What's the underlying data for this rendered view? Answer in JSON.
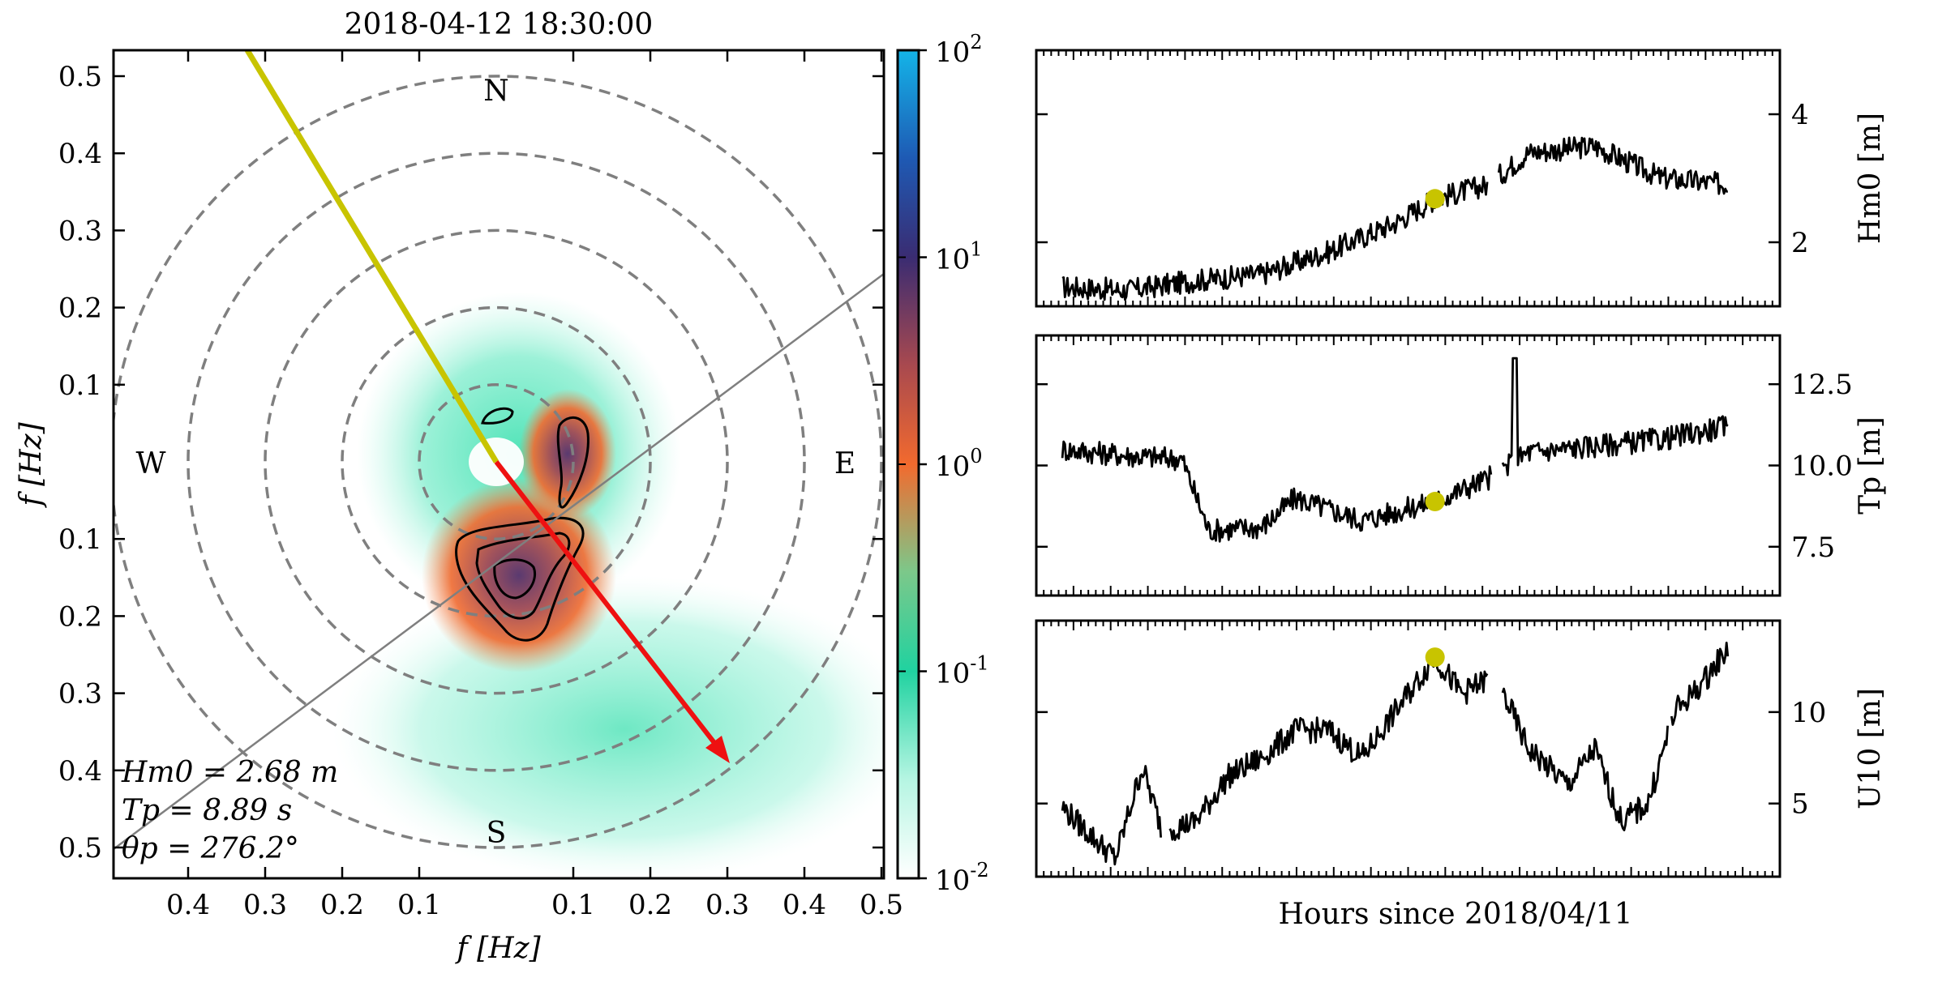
{
  "polar": {
    "title": "2018-04-12 18:30:00",
    "xlabel": "f [Hz]",
    "ylabel": "f [Hz]",
    "tick_labels": [
      "0.5",
      "0.4",
      "0.3",
      "0.2",
      "0.1",
      "0.1",
      "0.2",
      "0.3",
      "0.4",
      "0.5"
    ],
    "compass": {
      "north": "N",
      "south": "S",
      "east": "E",
      "west": "W"
    },
    "stats": [
      "Hm0 = 2.68 m",
      "Tp = 8.89 s",
      "θp = 276.2°"
    ],
    "stats_values": {
      "Hm0": 2.68,
      "Tp": 8.89,
      "theta_p": 276.2
    },
    "rings_hz": [
      0.1,
      0.2,
      0.3,
      0.4,
      0.5
    ],
    "colorbar": {
      "scale": "log",
      "min": 0.01,
      "max": 100,
      "ticks": [
        "10^2",
        "10^1",
        "10^0",
        "10^-1",
        "10^-2"
      ]
    },
    "colors": {
      "wind_line": "#c8c400",
      "peak_arrow": "#ee1111",
      "ring": "#7f7f7f",
      "low": "#3ee0b0",
      "mid": "#f06a30",
      "high": "#5a3a70"
    }
  },
  "timeseries": {
    "xlabel": "Hours since 2018/04/11",
    "marker_color": "#c8c400",
    "panels": [
      {
        "ylabel": "Hm0 [m]",
        "yticks": [
          "4",
          "2"
        ],
        "ylim": [
          1.0,
          5.0
        ],
        "marker": {
          "x": 0.56,
          "y": 2.68
        }
      },
      {
        "ylabel": "Tp [m]",
        "yticks": [
          "12.5",
          "10.0",
          "7.5"
        ],
        "ylim": [
          6.0,
          14.0
        ],
        "marker": {
          "x": 0.56,
          "y": 8.89
        }
      },
      {
        "ylabel": "U10 [m]",
        "yticks": [
          "10",
          "5"
        ],
        "ylim": [
          1.0,
          15.0
        ],
        "marker": {
          "x": 0.56,
          "y": 13.0
        }
      }
    ]
  },
  "chart_data": [
    {
      "type": "heatmap",
      "title": "2018-04-12 18:30:00",
      "xlabel": "f [Hz]",
      "ylabel": "f [Hz]",
      "xlim": [
        -0.5,
        0.5
      ],
      "ylim": [
        -0.5,
        0.5
      ],
      "colorbar": {
        "scale": "log",
        "range": [
          0.01,
          100
        ]
      },
      "annotations": {
        "Hm0_m": 2.68,
        "Tp_s": 8.89,
        "theta_p_deg": 276.2
      }
    },
    {
      "type": "line",
      "xlabel": "Hours since 2018/04/11",
      "series": [
        {
          "name": "Hm0 [m]",
          "anchors": [
            [
              0.0,
              1.3
            ],
            [
              0.1,
              1.25
            ],
            [
              0.2,
              1.4
            ],
            [
              0.3,
              1.5
            ],
            [
              0.4,
              1.85
            ],
            [
              0.5,
              2.3
            ],
            [
              0.56,
              2.68
            ],
            [
              0.64,
              2.9
            ],
            [
              0.7,
              3.4
            ],
            [
              0.8,
              3.5
            ],
            [
              0.9,
              3.0
            ],
            [
              1.0,
              2.9
            ]
          ],
          "gaps": [
            [
              0.64,
              0.655
            ]
          ]
        },
        {
          "name": "Tp [m]",
          "anchors": [
            [
              0.0,
              10.5
            ],
            [
              0.1,
              10.3
            ],
            [
              0.18,
              10.2
            ],
            [
              0.22,
              8.0
            ],
            [
              0.3,
              8.1
            ],
            [
              0.35,
              9.0
            ],
            [
              0.45,
              8.3
            ],
            [
              0.56,
              8.89
            ],
            [
              0.64,
              9.6
            ],
            [
              0.7,
              10.4
            ],
            [
              0.8,
              10.6
            ],
            [
              0.9,
              10.8
            ],
            [
              1.0,
              11.2
            ]
          ],
          "gaps": [
            [
              0.645,
              0.66
            ]
          ]
        },
        {
          "name": "U10 [m]",
          "anchors": [
            [
              0.0,
              4.8
            ],
            [
              0.05,
              3.0
            ],
            [
              0.08,
              2.0
            ],
            [
              0.12,
              7.0
            ],
            [
              0.15,
              3.5
            ],
            [
              0.2,
              4.0
            ],
            [
              0.25,
              6.5
            ],
            [
              0.3,
              7.5
            ],
            [
              0.35,
              9.0
            ],
            [
              0.4,
              9.0
            ],
            [
              0.45,
              7.5
            ],
            [
              0.5,
              10.0
            ],
            [
              0.56,
              13.0
            ],
            [
              0.6,
              11.0
            ],
            [
              0.65,
              12.0
            ],
            [
              0.7,
              8.0
            ],
            [
              0.76,
              6.0
            ],
            [
              0.8,
              8.0
            ],
            [
              0.84,
              4.0
            ],
            [
              0.88,
              5.0
            ],
            [
              0.92,
              10.0
            ],
            [
              0.96,
              11.5
            ],
            [
              1.0,
              13.5
            ]
          ],
          "gaps": [
            [
              0.15,
              0.16
            ],
            [
              0.64,
              0.66
            ],
            [
              0.91,
              0.915
            ]
          ]
        }
      ]
    }
  ]
}
